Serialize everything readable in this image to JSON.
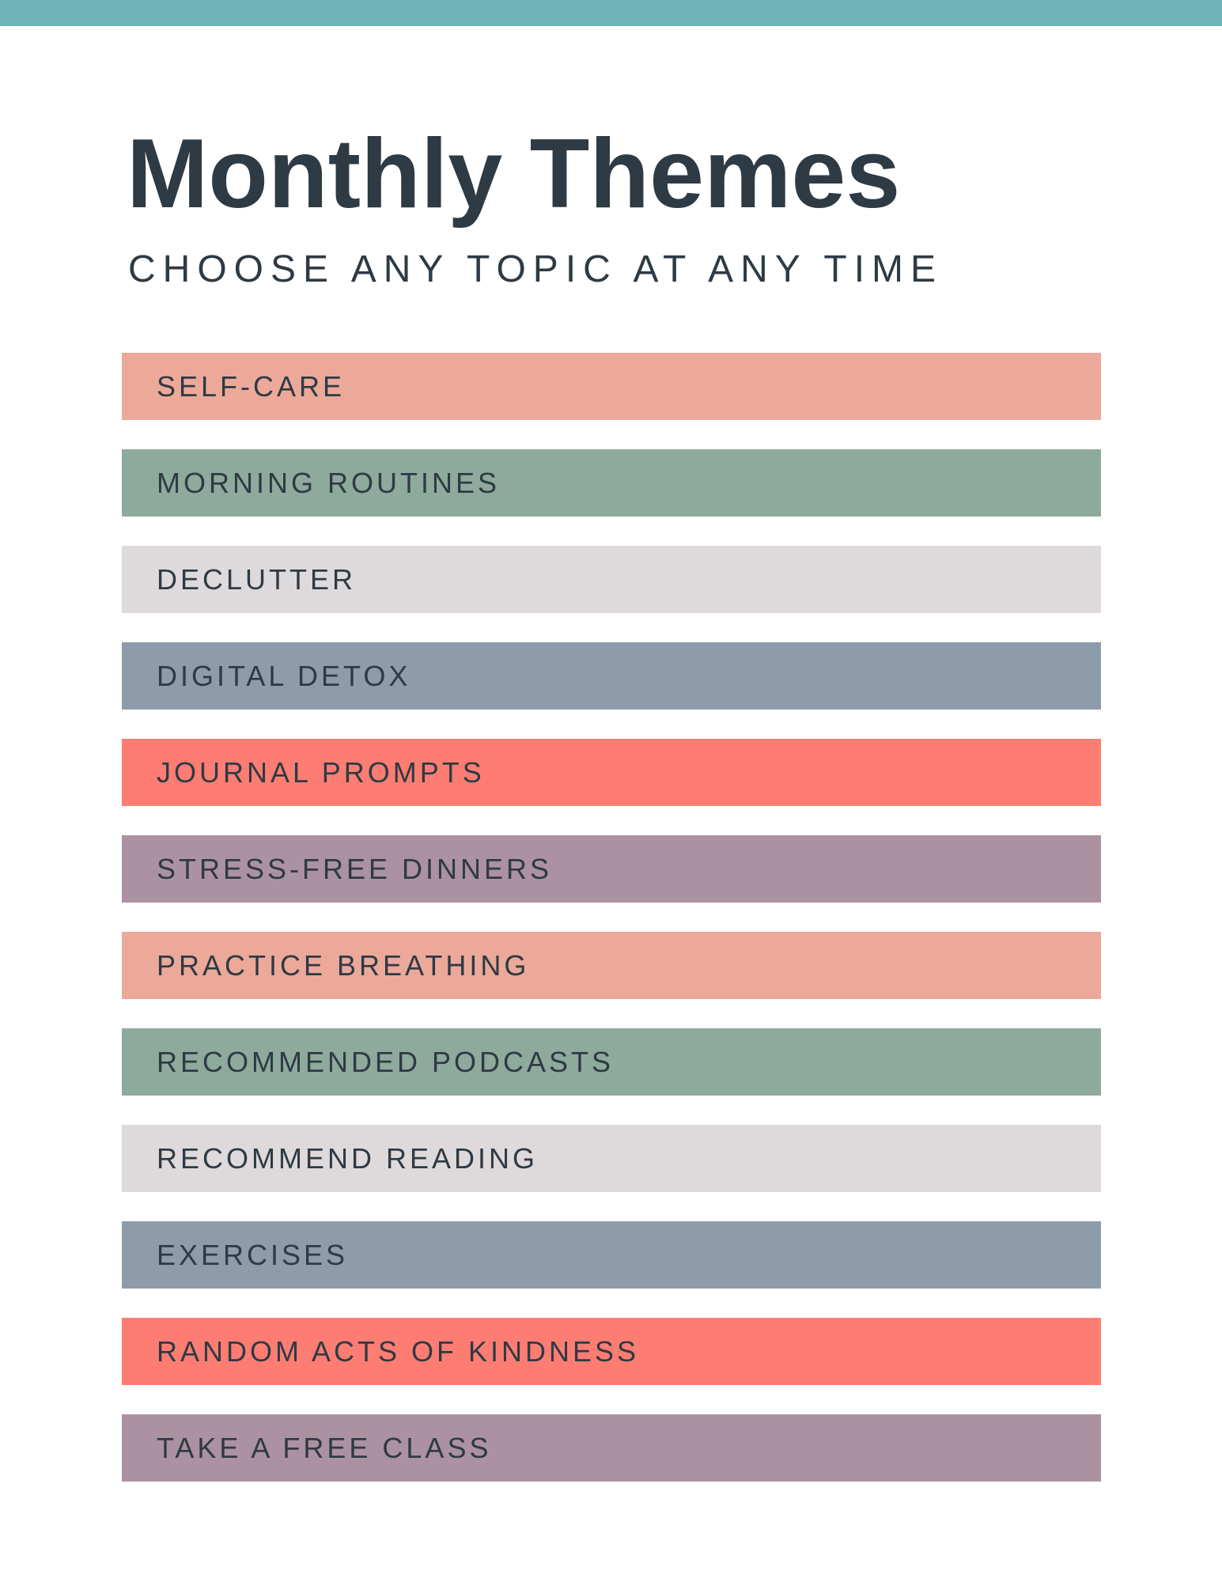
{
  "page": {
    "title": "Monthly Themes",
    "subtitle": "CHOOSE ANY TOPIC AT ANY TIME"
  },
  "colors": {
    "header_accent_bar": "#6fb3b7",
    "heading_text": "#2e3a44",
    "bar_label_text": "#2e3a44",
    "background": "#ffffff",
    "salmon": "#eca99a",
    "sage": "#8eaa9c",
    "light_gray": "#dedadb",
    "slate_blue": "#8e9bab",
    "coral": "#fe7d73",
    "mauve": "#ac92a1"
  },
  "themes": {
    "items": [
      {
        "label": "SELF-CARE",
        "color": "#eca99a"
      },
      {
        "label": "MORNING ROUTINES",
        "color": "#8eaa9c"
      },
      {
        "label": "DECLUTTER",
        "color": "#dedadb"
      },
      {
        "label": "DIGITAL DETOX",
        "color": "#8e9bab"
      },
      {
        "label": "JOURNAL PROMPTS",
        "color": "#fe7d73"
      },
      {
        "label": "STRESS-FREE DINNERS",
        "color": "#ac92a1"
      },
      {
        "label": "PRACTICE BREATHING",
        "color": "#eca99a"
      },
      {
        "label": "RECOMMENDED PODCASTS",
        "color": "#8eaa9c"
      },
      {
        "label": "RECOMMEND READING",
        "color": "#dedadb"
      },
      {
        "label": "EXERCISES",
        "color": "#8e9bab"
      },
      {
        "label": "RANDOM ACTS OF KINDNESS",
        "color": "#fe7d73"
      },
      {
        "label": "TAKE A FREE CLASS",
        "color": "#ac92a1"
      }
    ]
  }
}
